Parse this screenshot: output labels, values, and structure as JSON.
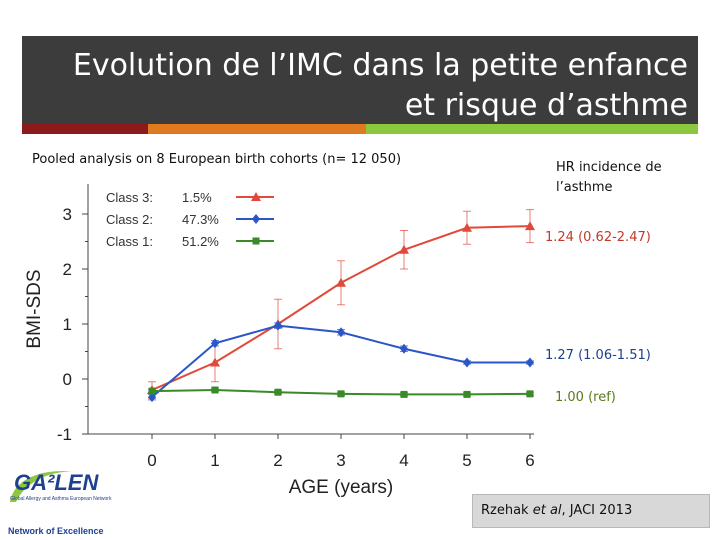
{
  "slide": {
    "title_line1": "Evolution de l’IMC dans la petite enfance",
    "title_line2": "et risque d’asthme",
    "subtitle": "Pooled analysis on 8 European birth cohorts (n= 12 050)",
    "hr_header_line1": "HR incidence de",
    "hr_header_line2": "l’asthme",
    "hr_values": [
      "1.24 (0.62-2.47)",
      "1.27 (1.06-1.51)",
      "1.00 (ref)"
    ],
    "hr_colors": [
      "#c0392b",
      "#1f3f8f",
      "#5a7a1a"
    ],
    "reference": "Rzehak et al, JACI 2013",
    "logo": {
      "name": "GA²LEN",
      "tagline": "Global Allergy and Asthma European Network",
      "footer": "Network of Excellence"
    },
    "stripe_colors": [
      "#8b1a1a",
      "#e07a20",
      "#8dc63f"
    ]
  },
  "chart_data": {
    "type": "line",
    "x": [
      0,
      1,
      2,
      3,
      4,
      5,
      6
    ],
    "xlabel": "AGE (years)",
    "ylabel": "BMI-SDS",
    "xlim": [
      0,
      6
    ],
    "ylim": [
      -1,
      3
    ],
    "yticks": [
      -1,
      0,
      1,
      2,
      3
    ],
    "grid": false,
    "legend_position": "top-left",
    "series": [
      {
        "name": "Class 3:",
        "pct": "1.5%",
        "color": "#e04a3a",
        "marker": "triangle",
        "values": [
          -0.2,
          0.3,
          1.0,
          1.75,
          2.35,
          2.75,
          2.78
        ],
        "err": [
          0.15,
          0.35,
          0.45,
          0.4,
          0.35,
          0.3,
          0.3
        ]
      },
      {
        "name": "Class 2:",
        "pct": "47.3%",
        "color": "#2a56c8",
        "marker": "diamond",
        "values": [
          -0.33,
          0.65,
          0.97,
          0.85,
          0.55,
          0.3,
          0.3
        ],
        "err": [
          0.05,
          0.05,
          0.05,
          0.05,
          0.05,
          0.03,
          0.03
        ]
      },
      {
        "name": "Class 1:",
        "pct": "51.2%",
        "color": "#3a8a2a",
        "marker": "square",
        "values": [
          -0.22,
          -0.2,
          -0.24,
          -0.27,
          -0.28,
          -0.28,
          -0.27
        ],
        "err": [
          0.03,
          0.03,
          0.03,
          0.03,
          0.03,
          0.03,
          0.03
        ]
      }
    ]
  }
}
